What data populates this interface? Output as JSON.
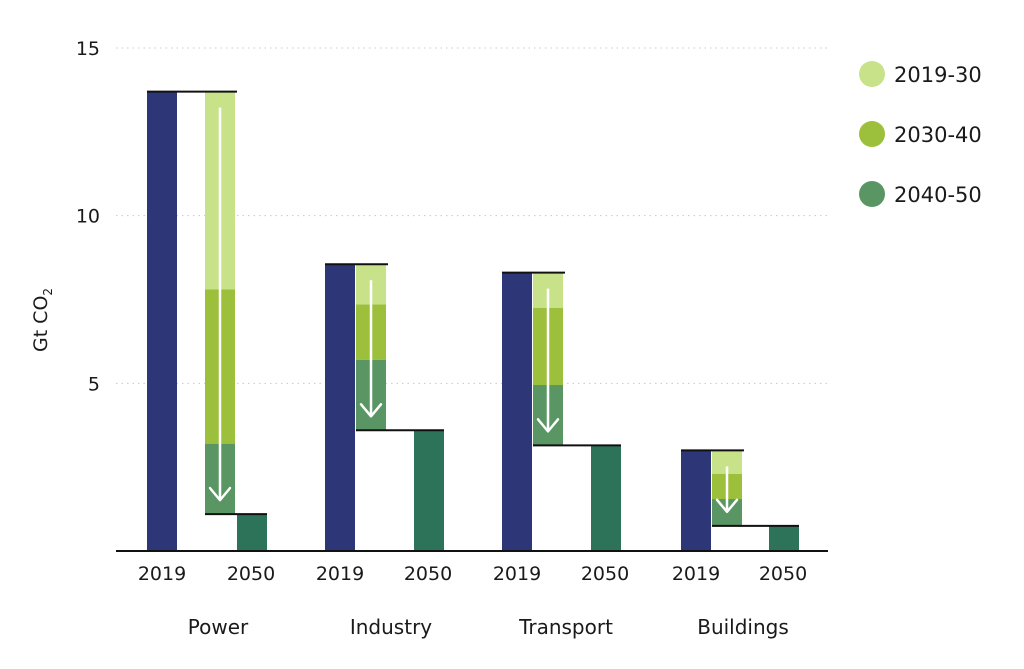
{
  "chart_data": {
    "type": "bar",
    "subtype": "waterfall",
    "ylabel": "Gt CO",
    "ylabel_subscript": "2",
    "ylim": [
      0,
      15
    ],
    "yticks": [
      5,
      10,
      15
    ],
    "grid": true,
    "legend_placement": "top-right",
    "legend": [
      {
        "name": "2019-30",
        "color": "#c8e28a"
      },
      {
        "name": "2030-40",
        "color": "#9cbf3c"
      },
      {
        "name": "2040-50",
        "color": "#5a9663"
      }
    ],
    "bar_labels": {
      "start": "2019",
      "end": "2050"
    },
    "colors": {
      "base_2019": "#2d3676",
      "end_2050": "#2d735a",
      "arrow": "#ffffff"
    },
    "sectors": [
      {
        "name": "Power",
        "v2019": 13.7,
        "v2030": 7.8,
        "v2040": 3.2,
        "v2050": 1.1
      },
      {
        "name": "Industry",
        "v2019": 8.55,
        "v2030": 7.35,
        "v2040": 5.7,
        "v2050": 3.6
      },
      {
        "name": "Transport",
        "v2019": 8.3,
        "v2030": 7.25,
        "v2040": 4.95,
        "v2050": 3.15
      },
      {
        "name": "Buildings",
        "v2019": 3.0,
        "v2030": 2.3,
        "v2040": 1.55,
        "v2050": 0.75
      }
    ]
  }
}
